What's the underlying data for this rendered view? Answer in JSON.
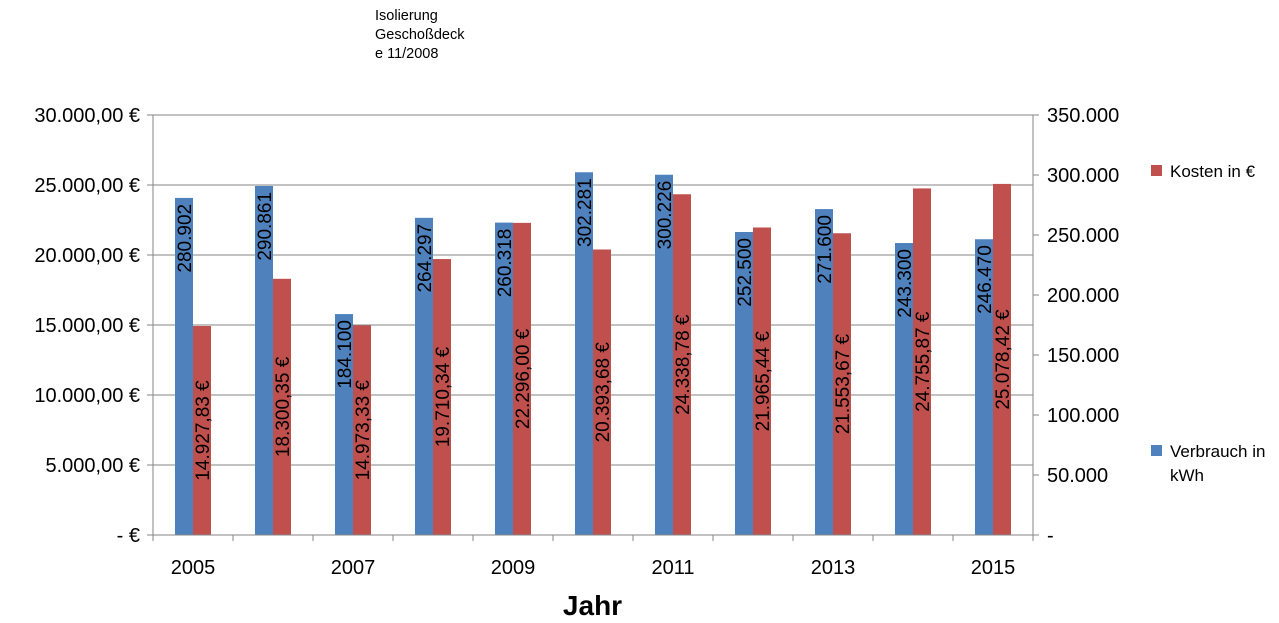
{
  "chart_data": {
    "type": "bar",
    "annotation": [
      "Isolierung",
      "Geschoßdeck",
      "e 11/2008"
    ],
    "xlabel": "Jahr",
    "categories": [
      "2005",
      "2006",
      "2007",
      "2008",
      "2009",
      "2010",
      "2011",
      "2012",
      "2013",
      "2014",
      "2015"
    ],
    "x_tick_labels": [
      "2005",
      "2007",
      "2009",
      "2011",
      "2013",
      "2015"
    ],
    "series": [
      {
        "name": "Verbrauch in kWh",
        "axis": "right",
        "color": "#4F81BD",
        "values": [
          280902,
          290861,
          184100,
          264297,
          260318,
          302281,
          300226,
          252500,
          271600,
          243300,
          246470
        ],
        "labels": [
          "280.902",
          "290.861",
          "184.100",
          "264.297",
          "260.318",
          "302.281",
          "300.226",
          "252.500",
          "271.600",
          "243.300",
          "246.470"
        ]
      },
      {
        "name": "Kosten in €",
        "axis": "left",
        "color": "#C0504D",
        "values": [
          14927.83,
          18300.35,
          14973.33,
          19710.34,
          22296.0,
          20393.68,
          24338.78,
          21965.44,
          21553.67,
          24755.87,
          25078.42
        ],
        "labels": [
          "14.927,83 €",
          "18.300,35 €",
          "14.973,33 €",
          "19.710,34 €",
          "22.296,00 €",
          "20.393,68 €",
          "24.338,78 €",
          "21.965,44 €",
          "21.553,67 €",
          "24.755,87 €",
          "25.078,42 €"
        ]
      }
    ],
    "left_axis": {
      "ylim": [
        0,
        30000
      ],
      "ticks": [
        0,
        5000,
        10000,
        15000,
        20000,
        25000,
        30000
      ],
      "tick_labels": [
        "-   €",
        "5.000,00 €",
        "10.000,00 €",
        "15.000,00 €",
        "20.000,00 €",
        "25.000,00 €",
        "30.000,00 €"
      ]
    },
    "right_axis": {
      "ylim": [
        0,
        350000
      ],
      "ticks": [
        0,
        50000,
        100000,
        150000,
        200000,
        250000,
        300000,
        350000
      ],
      "tick_labels": [
        "-",
        "50.000",
        "100.000",
        "150.000",
        "200.000",
        "250.000",
        "300.000",
        "350.000"
      ]
    },
    "grid": true,
    "legend_position": "right"
  }
}
